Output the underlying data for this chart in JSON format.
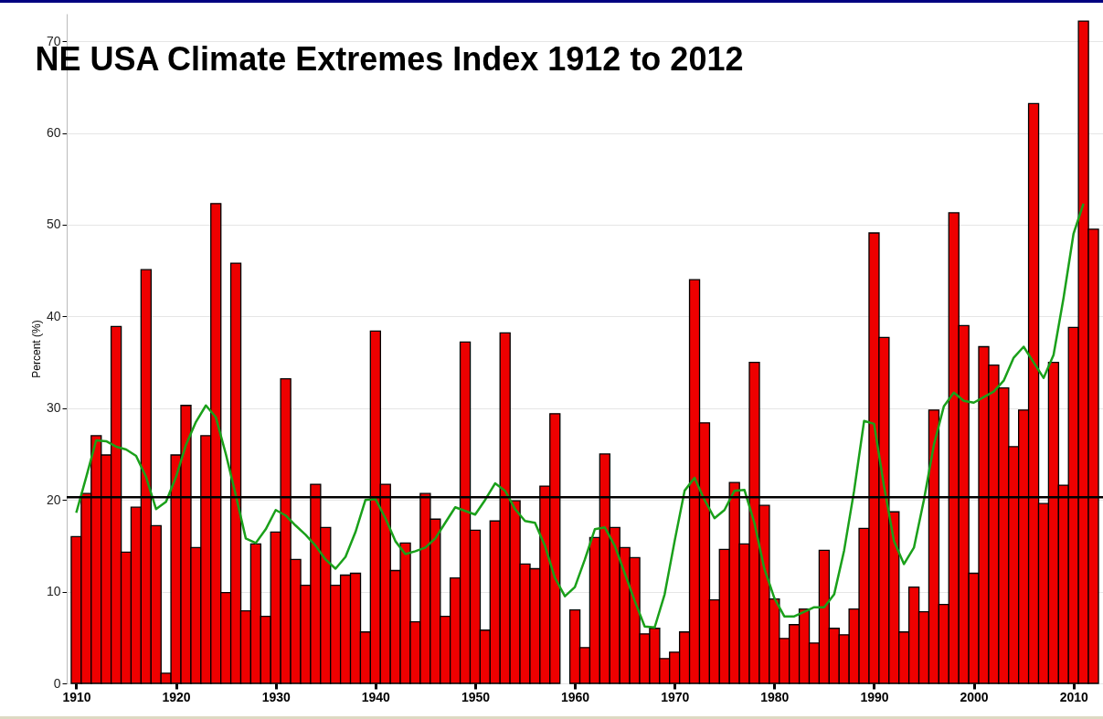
{
  "chart_data": {
    "type": "bar",
    "title": "NE USA Climate Extremes Index 1912 to 2012",
    "ylabel": "Percent (%)",
    "x": [
      1910,
      1911,
      1912,
      1913,
      1914,
      1915,
      1916,
      1917,
      1918,
      1919,
      1920,
      1921,
      1922,
      1923,
      1924,
      1925,
      1926,
      1927,
      1928,
      1929,
      1930,
      1931,
      1932,
      1933,
      1934,
      1935,
      1936,
      1937,
      1938,
      1939,
      1940,
      1941,
      1942,
      1943,
      1944,
      1945,
      1946,
      1947,
      1948,
      1949,
      1950,
      1951,
      1952,
      1953,
      1954,
      1955,
      1956,
      1957,
      1958,
      1959,
      1960,
      1961,
      1962,
      1963,
      1964,
      1965,
      1966,
      1967,
      1968,
      1969,
      1970,
      1971,
      1972,
      1973,
      1974,
      1975,
      1976,
      1977,
      1978,
      1979,
      1980,
      1981,
      1982,
      1983,
      1984,
      1985,
      1986,
      1987,
      1988,
      1989,
      1990,
      1991,
      1992,
      1993,
      1994,
      1995,
      1996,
      1997,
      1998,
      1999,
      2000,
      2001,
      2002,
      2003,
      2004,
      2005,
      2006,
      2007,
      2008,
      2009,
      2010,
      2011,
      2012
    ],
    "series": [
      {
        "color": "#ee0000",
        "values": [
          16,
          20.7,
          27,
          24.9,
          38.9,
          14.3,
          19.2,
          45.1,
          17.2,
          1.1,
          24.9,
          30.3,
          14.8,
          27,
          52.3,
          9.9,
          45.8,
          7.9,
          15.2,
          7.3,
          16.5,
          33.2,
          13.5,
          10.7,
          21.7,
          17,
          10.7,
          11.8,
          12,
          5.6,
          38.4,
          21.7,
          12.3,
          15.3,
          6.7,
          20.7,
          17.9,
          7.3,
          11.5,
          37.2,
          16.7,
          5.8,
          17.7,
          38.2,
          19.9,
          13,
          12.5,
          21.5,
          29.4,
          null,
          8,
          3.9,
          15.9,
          25,
          17,
          14.8,
          13.7,
          5.4,
          6,
          2.7,
          3.4,
          5.6,
          44,
          28.4,
          9.1,
          14.6,
          21.9,
          15.2,
          35,
          19.4,
          9.2,
          4.9,
          6.4,
          8.1,
          4.4,
          14.5,
          6,
          5.3,
          8.1,
          16.9,
          49.1,
          37.7,
          18.7,
          5.6,
          10.5,
          7.8,
          29.8,
          8.6,
          51.3,
          39,
          12,
          36.7,
          34.7,
          32.2,
          25.8,
          29.8,
          63.2,
          19.6,
          35,
          21.6,
          38.8,
          72.2,
          49.5
        ]
      },
      {
        "type": "line",
        "color": "#1aa01a",
        "x": [
          1910,
          1911,
          1912,
          1913,
          1914,
          1915,
          1916,
          1917,
          1918,
          1919,
          1920,
          1921,
          1922,
          1923,
          1924,
          1925,
          1926,
          1927,
          1928,
          1929,
          1930,
          1931,
          1932,
          1933,
          1934,
          1935,
          1936,
          1937,
          1938,
          1939,
          1940,
          1941,
          1942,
          1943,
          1944,
          1945,
          1946,
          1947,
          1948,
          1949,
          1950,
          1951,
          1952,
          1953,
          1954,
          1955,
          1956,
          1957,
          1958,
          1959,
          1960,
          1961,
          1962,
          1963,
          1964,
          1965,
          1966,
          1967,
          1968,
          1969,
          1970,
          1971,
          1972,
          1973,
          1974,
          1975,
          1976,
          1977,
          1978,
          1979,
          1980,
          1981,
          1982,
          1983,
          1984,
          1985,
          1986,
          1987,
          1988,
          1989,
          1990,
          1991,
          1992,
          1993,
          1994,
          1995,
          1996,
          1997,
          1998,
          1999,
          2000,
          2001,
          2002,
          2003,
          2004,
          2005,
          2006,
          2007,
          2008,
          2009,
          2010,
          2011
        ],
        "values": [
          18.6,
          22.5,
          26.5,
          26.4,
          25.8,
          25.5,
          24.8,
          22.5,
          19,
          19.8,
          22.5,
          26,
          28.5,
          30.3,
          29,
          25,
          20.5,
          15.8,
          15.3,
          16.8,
          18.9,
          18.3,
          17.2,
          16.2,
          15,
          13.5,
          12.5,
          13.8,
          16.5,
          20,
          20.1,
          18,
          15.5,
          14.1,
          14.4,
          14.8,
          15.8,
          17.5,
          19.2,
          18.8,
          18.4,
          20,
          21.8,
          21,
          19,
          17.7,
          17.5,
          15,
          11.5,
          9.5,
          10.5,
          13.5,
          16.8,
          17,
          15,
          12,
          9,
          6.2,
          6.1,
          9.7,
          15.5,
          21,
          22.4,
          20,
          18,
          18.9,
          21,
          21.1,
          17.5,
          12.5,
          9.3,
          7.3,
          7.3,
          7.8,
          8.3,
          8.3,
          9.7,
          14.5,
          21,
          28.6,
          28.3,
          21.5,
          15.5,
          13,
          14.8,
          20,
          26,
          30.2,
          31.7,
          30.8,
          30.6,
          31.2,
          31.8,
          33,
          35.5,
          36.7,
          35,
          33.3,
          35.8,
          42,
          49,
          52.3
        ]
      }
    ],
    "xlim": [
      1909.5,
      2012.5
    ],
    "xticks": [
      1910,
      1920,
      1930,
      1940,
      1950,
      1960,
      1970,
      1980,
      1990,
      2000,
      2010
    ],
    "ylim": [
      0,
      73
    ],
    "yticks": [
      0,
      10,
      20,
      30,
      40,
      50,
      60,
      70
    ],
    "ref_lines": [
      {
        "axis": "y",
        "value": 20.3,
        "color": "#000000"
      }
    ],
    "grid": "y"
  }
}
